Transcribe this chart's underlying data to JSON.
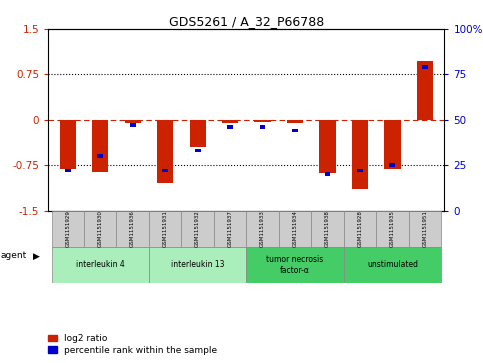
{
  "title": "GDS5261 / A_32_P66788",
  "samples": [
    "GSM1151929",
    "GSM1151930",
    "GSM1151936",
    "GSM1151931",
    "GSM1151932",
    "GSM1151937",
    "GSM1151933",
    "GSM1151934",
    "GSM1151938",
    "GSM1151928",
    "GSM1151935",
    "GSM1151951"
  ],
  "log2_ratio": [
    -0.82,
    -0.87,
    -0.05,
    -1.05,
    -0.45,
    -0.05,
    -0.03,
    -0.05,
    -0.88,
    -1.15,
    -0.82,
    0.97
  ],
  "percentile": [
    22,
    30,
    47,
    22,
    33,
    46,
    46,
    44,
    20,
    22,
    25,
    79
  ],
  "groups": [
    {
      "label": "interleukin 4",
      "start": 0,
      "end": 3,
      "color": "#aaeebb"
    },
    {
      "label": "interleukin 13",
      "start": 3,
      "end": 6,
      "color": "#aaeebb"
    },
    {
      "label": "tumor necrosis\nfactor-α",
      "start": 6,
      "end": 9,
      "color": "#44cc66"
    },
    {
      "label": "unstimulated",
      "start": 9,
      "end": 12,
      "color": "#44cc66"
    }
  ],
  "ylim_left": [
    -1.5,
    1.5
  ],
  "yticks_left": [
    -1.5,
    -0.75,
    0,
    0.75,
    1.5
  ],
  "ylim_right": [
    0,
    100
  ],
  "yticks_right": [
    0,
    25,
    50,
    75,
    100
  ],
  "red_color": "#cc2200",
  "blue_color": "#0000cc",
  "bg_color": "#ffffff",
  "agent_label": "agent",
  "legend_red": "log2 ratio",
  "legend_blue": "percentile rank within the sample"
}
